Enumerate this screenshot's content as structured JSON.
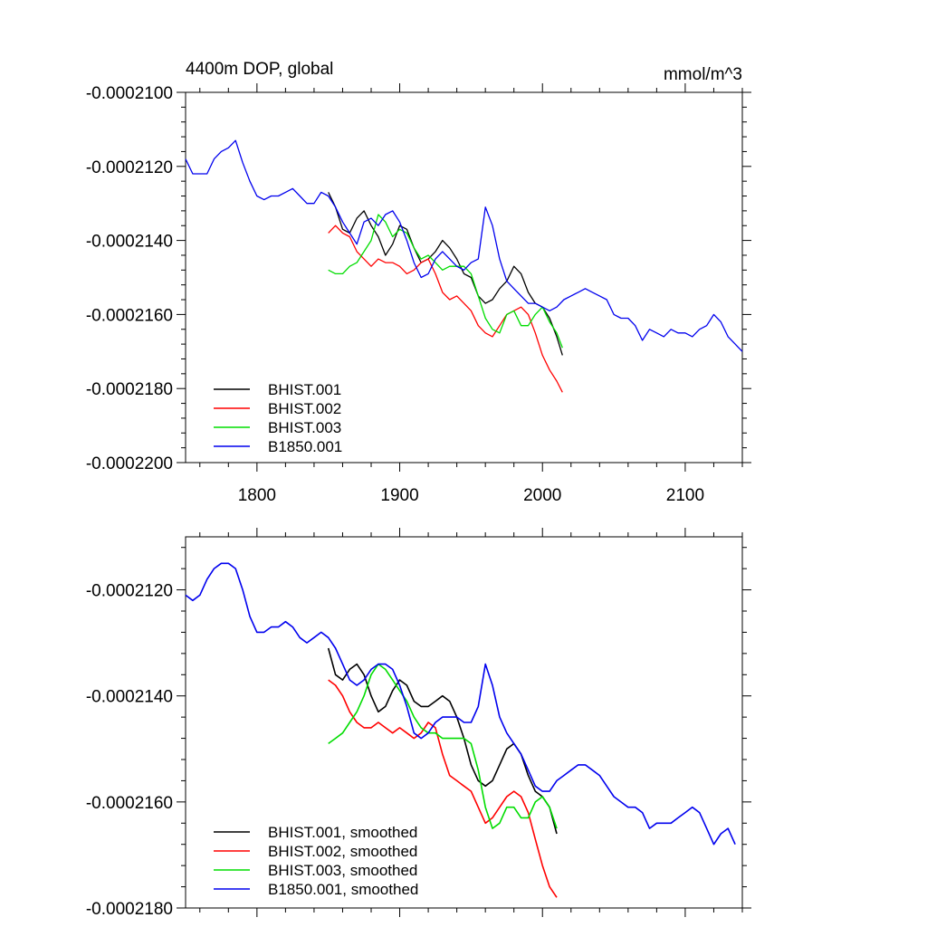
{
  "chart_data": [
    {
      "type": "line",
      "title": "4400m DOP, global",
      "units": "mmol/m^3",
      "xlabel": "",
      "ylabel": "",
      "xlim": [
        1750,
        2140
      ],
      "ylim": [
        -0.00022,
        -0.00021
      ],
      "x_ticks": [
        1800,
        1900,
        2000,
        2100
      ],
      "y_ticks": [
        -0.00021,
        -0.000212,
        -0.000214,
        -0.000216,
        -0.000218,
        -0.00022
      ],
      "y_tick_labels": [
        "-0.0002100",
        "-0.0002120",
        "-0.0002140",
        "-0.0002160",
        "-0.0002180",
        "-0.0002200"
      ],
      "x_tick_labels": [
        "1800",
        "1900",
        "2000",
        "2100"
      ],
      "legend": "bottom-left",
      "grid": false,
      "series": [
        {
          "name": "BHIST.001",
          "color": "#000000",
          "x": [
            1850,
            1855,
            1860,
            1865,
            1870,
            1875,
            1880,
            1885,
            1890,
            1895,
            1900,
            1905,
            1910,
            1915,
            1920,
            1925,
            1930,
            1935,
            1940,
            1945,
            1950,
            1955,
            1960,
            1965,
            1970,
            1975,
            1980,
            1985,
            1990,
            1995,
            2000,
            2005,
            2010,
            2014
          ],
          "y": [
            -0.0002127,
            -0.0002131,
            -0.0002137,
            -0.0002138,
            -0.0002134,
            -0.0002132,
            -0.0002136,
            -0.0002139,
            -0.0002144,
            -0.0002141,
            -0.0002136,
            -0.0002137,
            -0.0002142,
            -0.0002146,
            -0.0002145,
            -0.0002143,
            -0.000214,
            -0.0002142,
            -0.0002145,
            -0.0002149,
            -0.000215,
            -0.0002155,
            -0.0002157,
            -0.0002156,
            -0.0002153,
            -0.0002151,
            -0.0002147,
            -0.0002149,
            -0.0002154,
            -0.0002157,
            -0.0002158,
            -0.0002161,
            -0.0002166,
            -0.0002171
          ]
        },
        {
          "name": "BHIST.002",
          "color": "#ff0000",
          "x": [
            1850,
            1855,
            1860,
            1865,
            1870,
            1875,
            1880,
            1885,
            1890,
            1895,
            1900,
            1905,
            1910,
            1915,
            1920,
            1925,
            1930,
            1935,
            1940,
            1945,
            1950,
            1955,
            1960,
            1965,
            1970,
            1975,
            1980,
            1985,
            1990,
            1995,
            2000,
            2005,
            2010,
            2014
          ],
          "y": [
            -0.0002138,
            -0.0002136,
            -0.0002138,
            -0.0002139,
            -0.0002143,
            -0.0002145,
            -0.0002147,
            -0.0002145,
            -0.0002146,
            -0.0002146,
            -0.0002147,
            -0.0002149,
            -0.0002148,
            -0.0002146,
            -0.0002145,
            -0.0002149,
            -0.0002154,
            -0.0002156,
            -0.0002155,
            -0.0002157,
            -0.0002159,
            -0.0002163,
            -0.0002165,
            -0.0002166,
            -0.0002163,
            -0.000216,
            -0.0002159,
            -0.0002158,
            -0.000216,
            -0.0002165,
            -0.0002171,
            -0.0002175,
            -0.0002178,
            -0.0002181
          ]
        },
        {
          "name": "BHIST.003",
          "color": "#00dd00",
          "x": [
            1850,
            1855,
            1860,
            1865,
            1870,
            1875,
            1880,
            1885,
            1890,
            1895,
            1900,
            1905,
            1910,
            1915,
            1920,
            1925,
            1930,
            1935,
            1940,
            1945,
            1950,
            1955,
            1960,
            1965,
            1970,
            1975,
            1980,
            1985,
            1990,
            1995,
            2000,
            2005,
            2010,
            2014
          ],
          "y": [
            -0.0002148,
            -0.0002149,
            -0.0002149,
            -0.0002147,
            -0.0002146,
            -0.0002143,
            -0.000214,
            -0.0002133,
            -0.0002135,
            -0.0002139,
            -0.0002137,
            -0.0002138,
            -0.0002142,
            -0.0002145,
            -0.0002144,
            -0.0002146,
            -0.0002148,
            -0.0002147,
            -0.0002147,
            -0.0002147,
            -0.0002149,
            -0.0002155,
            -0.0002161,
            -0.0002164,
            -0.0002165,
            -0.000216,
            -0.0002159,
            -0.0002163,
            -0.0002163,
            -0.000216,
            -0.0002158,
            -0.0002162,
            -0.0002165,
            -0.0002169
          ]
        },
        {
          "name": "B1850.001",
          "color": "#0000ee",
          "x": [
            1750,
            1755,
            1760,
            1765,
            1770,
            1775,
            1780,
            1785,
            1790,
            1795,
            1800,
            1805,
            1810,
            1815,
            1820,
            1825,
            1830,
            1835,
            1840,
            1845,
            1850,
            1855,
            1860,
            1865,
            1870,
            1875,
            1880,
            1885,
            1890,
            1895,
            1900,
            1905,
            1910,
            1915,
            1920,
            1925,
            1930,
            1935,
            1940,
            1945,
            1950,
            1955,
            1960,
            1965,
            1970,
            1975,
            1980,
            1985,
            1990,
            1995,
            2000,
            2005,
            2010,
            2015,
            2020,
            2025,
            2030,
            2035,
            2040,
            2045,
            2050,
            2055,
            2060,
            2065,
            2070,
            2075,
            2080,
            2085,
            2090,
            2095,
            2100,
            2105,
            2110,
            2115,
            2120,
            2125,
            2130,
            2135,
            2140
          ],
          "y": [
            -0.0002118,
            -0.0002122,
            -0.0002122,
            -0.0002122,
            -0.0002118,
            -0.0002116,
            -0.0002115,
            -0.0002113,
            -0.0002119,
            -0.0002124,
            -0.0002128,
            -0.0002129,
            -0.0002128,
            -0.0002128,
            -0.0002127,
            -0.0002126,
            -0.0002128,
            -0.000213,
            -0.000213,
            -0.0002127,
            -0.0002128,
            -0.0002131,
            -0.0002135,
            -0.0002138,
            -0.0002141,
            -0.0002135,
            -0.0002134,
            -0.0002136,
            -0.0002133,
            -0.0002132,
            -0.0002135,
            -0.000214,
            -0.0002146,
            -0.000215,
            -0.0002149,
            -0.0002145,
            -0.0002143,
            -0.0002145,
            -0.0002147,
            -0.0002148,
            -0.0002146,
            -0.0002145,
            -0.0002131,
            -0.0002136,
            -0.0002145,
            -0.0002151,
            -0.0002153,
            -0.0002155,
            -0.0002157,
            -0.0002157,
            -0.0002158,
            -0.0002159,
            -0.0002158,
            -0.0002156,
            -0.0002155,
            -0.0002154,
            -0.0002153,
            -0.0002154,
            -0.0002155,
            -0.0002156,
            -0.000216,
            -0.0002161,
            -0.0002161,
            -0.0002163,
            -0.0002167,
            -0.0002164,
            -0.0002165,
            -0.0002166,
            -0.0002164,
            -0.0002165,
            -0.0002165,
            -0.0002166,
            -0.0002164,
            -0.0002163,
            -0.000216,
            -0.0002162,
            -0.0002166,
            -0.0002168,
            -0.000217
          ]
        }
      ]
    },
    {
      "type": "line",
      "title": "",
      "xlabel": "",
      "ylabel": "",
      "xlim": [
        1750,
        2140
      ],
      "ylim": [
        -0.000218,
        -0.000211
      ],
      "x_ticks": [
        1800,
        1900,
        2000,
        2100
      ],
      "y_ticks": [
        -0.000212,
        -0.000214,
        -0.000216,
        -0.000218
      ],
      "y_tick_labels": [
        "-0.0002120",
        "-0.0002140",
        "-0.0002160",
        "-0.0002180"
      ],
      "legend": "bottom-left",
      "grid": false,
      "series": [
        {
          "name": "BHIST.001, smoothed",
          "color": "#000000",
          "x": [
            1850,
            1855,
            1860,
            1865,
            1870,
            1875,
            1880,
            1885,
            1890,
            1895,
            1900,
            1905,
            1910,
            1915,
            1920,
            1925,
            1930,
            1935,
            1940,
            1945,
            1950,
            1955,
            1960,
            1965,
            1970,
            1975,
            1980,
            1985,
            1990,
            1995,
            2000,
            2005,
            2010
          ],
          "y": [
            -0.0002131,
            -0.0002136,
            -0.0002137,
            -0.0002135,
            -0.0002134,
            -0.0002136,
            -0.000214,
            -0.0002143,
            -0.0002142,
            -0.0002139,
            -0.0002137,
            -0.0002138,
            -0.0002141,
            -0.0002142,
            -0.0002142,
            -0.0002141,
            -0.000214,
            -0.0002141,
            -0.0002144,
            -0.0002148,
            -0.0002153,
            -0.0002156,
            -0.0002157,
            -0.0002156,
            -0.0002153,
            -0.000215,
            -0.0002149,
            -0.0002151,
            -0.0002155,
            -0.0002158,
            -0.0002159,
            -0.0002161,
            -0.0002166
          ]
        },
        {
          "name": "BHIST.002, smoothed",
          "color": "#ff0000",
          "x": [
            1850,
            1855,
            1860,
            1865,
            1870,
            1875,
            1880,
            1885,
            1890,
            1895,
            1900,
            1905,
            1910,
            1915,
            1920,
            1925,
            1930,
            1935,
            1940,
            1945,
            1950,
            1955,
            1960,
            1965,
            1970,
            1975,
            1980,
            1985,
            1990,
            1995,
            2000,
            2005,
            2010
          ],
          "y": [
            -0.0002137,
            -0.0002138,
            -0.000214,
            -0.0002143,
            -0.0002145,
            -0.0002146,
            -0.0002146,
            -0.0002145,
            -0.0002146,
            -0.0002147,
            -0.0002146,
            -0.0002147,
            -0.0002148,
            -0.0002147,
            -0.0002145,
            -0.0002146,
            -0.0002151,
            -0.0002155,
            -0.0002156,
            -0.0002157,
            -0.0002158,
            -0.0002161,
            -0.0002164,
            -0.0002163,
            -0.0002161,
            -0.0002159,
            -0.0002158,
            -0.0002159,
            -0.0002162,
            -0.0002167,
            -0.0002172,
            -0.0002176,
            -0.0002178
          ]
        },
        {
          "name": "BHIST.003, smoothed",
          "color": "#00dd00",
          "x": [
            1850,
            1855,
            1860,
            1865,
            1870,
            1875,
            1880,
            1885,
            1890,
            1895,
            1900,
            1905,
            1910,
            1915,
            1920,
            1925,
            1930,
            1935,
            1940,
            1945,
            1950,
            1955,
            1960,
            1965,
            1970,
            1975,
            1980,
            1985,
            1990,
            1995,
            2000,
            2005,
            2010
          ],
          "y": [
            -0.0002149,
            -0.0002148,
            -0.0002147,
            -0.0002145,
            -0.0002143,
            -0.000214,
            -0.0002136,
            -0.0002134,
            -0.0002135,
            -0.0002137,
            -0.0002139,
            -0.0002141,
            -0.0002144,
            -0.0002146,
            -0.0002147,
            -0.0002147,
            -0.0002148,
            -0.0002148,
            -0.0002148,
            -0.0002148,
            -0.0002149,
            -0.0002154,
            -0.0002161,
            -0.0002165,
            -0.0002164,
            -0.0002161,
            -0.0002161,
            -0.0002163,
            -0.0002163,
            -0.000216,
            -0.0002159,
            -0.0002161,
            -0.0002165
          ]
        },
        {
          "name": "B1850.001, smoothed",
          "color": "#0000ee",
          "x": [
            1750,
            1755,
            1760,
            1765,
            1770,
            1775,
            1780,
            1785,
            1790,
            1795,
            1800,
            1805,
            1810,
            1815,
            1820,
            1825,
            1830,
            1835,
            1840,
            1845,
            1850,
            1855,
            1860,
            1865,
            1870,
            1875,
            1880,
            1885,
            1890,
            1895,
            1900,
            1905,
            1910,
            1915,
            1920,
            1925,
            1930,
            1935,
            1940,
            1945,
            1950,
            1955,
            1960,
            1965,
            1970,
            1975,
            1980,
            1985,
            1990,
            1995,
            2000,
            2005,
            2010,
            2015,
            2020,
            2025,
            2030,
            2035,
            2040,
            2045,
            2050,
            2055,
            2060,
            2065,
            2070,
            2075,
            2080,
            2085,
            2090,
            2095,
            2100,
            2105,
            2110,
            2115,
            2120,
            2125,
            2130,
            2135
          ],
          "y": [
            -0.0002121,
            -0.0002122,
            -0.0002121,
            -0.0002118,
            -0.0002116,
            -0.0002115,
            -0.0002115,
            -0.0002116,
            -0.000212,
            -0.0002125,
            -0.0002128,
            -0.0002128,
            -0.0002127,
            -0.0002127,
            -0.0002126,
            -0.0002127,
            -0.0002129,
            -0.000213,
            -0.0002129,
            -0.0002128,
            -0.0002129,
            -0.0002131,
            -0.0002134,
            -0.0002137,
            -0.0002138,
            -0.0002137,
            -0.0002135,
            -0.0002134,
            -0.0002134,
            -0.0002135,
            -0.0002138,
            -0.0002142,
            -0.0002147,
            -0.0002148,
            -0.0002147,
            -0.0002145,
            -0.0002144,
            -0.0002144,
            -0.0002144,
            -0.0002145,
            -0.0002145,
            -0.0002142,
            -0.0002134,
            -0.0002138,
            -0.0002144,
            -0.0002147,
            -0.0002149,
            -0.0002151,
            -0.0002154,
            -0.0002157,
            -0.0002158,
            -0.0002158,
            -0.0002156,
            -0.0002155,
            -0.0002154,
            -0.0002153,
            -0.0002153,
            -0.0002154,
            -0.0002155,
            -0.0002157,
            -0.0002159,
            -0.000216,
            -0.0002161,
            -0.0002161,
            -0.0002162,
            -0.0002165,
            -0.0002164,
            -0.0002164,
            -0.0002164,
            -0.0002163,
            -0.0002162,
            -0.0002161,
            -0.0002162,
            -0.0002165,
            -0.0002168,
            -0.0002166,
            -0.0002165,
            -0.0002168
          ]
        }
      ]
    }
  ]
}
